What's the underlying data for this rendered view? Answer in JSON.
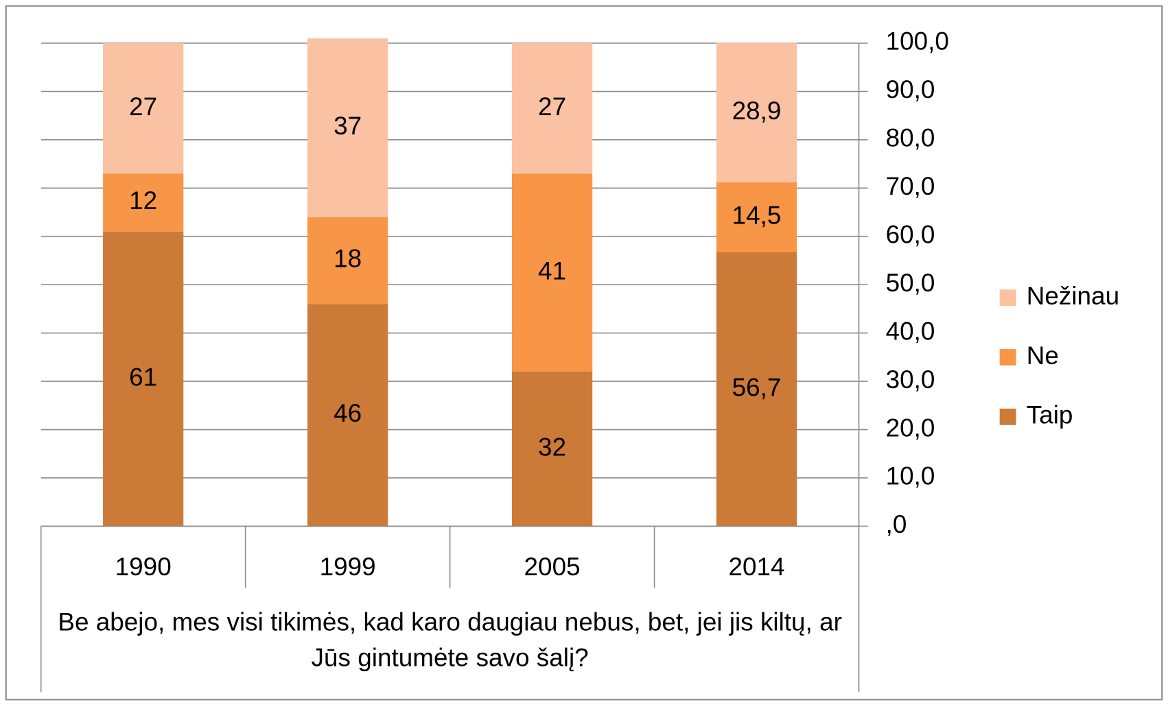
{
  "chart_data": {
    "type": "stacked_bar",
    "x_label": "Be abejo, mes visi tikimės, kad karo daugiau nebus, bet, jei jis kiltų, ar Jūs gintumėte savo šalį?",
    "categories": [
      "1990",
      "1999",
      "2005",
      "2014"
    ],
    "series": [
      {
        "name": "Taip",
        "color": "#cc7a38",
        "values": [
          61,
          46,
          32,
          56.7
        ],
        "value_labels": [
          "61",
          "46",
          "32",
          "56,7"
        ]
      },
      {
        "name": "Ne",
        "color": "#f79646",
        "values": [
          12,
          18,
          41,
          14.5
        ],
        "value_labels": [
          "12",
          "18",
          "41",
          "14,5"
        ]
      },
      {
        "name": "Nežinau",
        "color": "#fac1a3",
        "values": [
          27,
          37,
          27,
          28.9
        ],
        "value_labels": [
          "27",
          "37",
          "27",
          "28,9"
        ]
      }
    ],
    "ylim": [
      0,
      100
    ],
    "yticks": [
      {
        "value": 0,
        "label": ",0"
      },
      {
        "value": 10,
        "label": "10,0"
      },
      {
        "value": 20,
        "label": "20,0"
      },
      {
        "value": 30,
        "label": "30,0"
      },
      {
        "value": 40,
        "label": "40,0"
      },
      {
        "value": 50,
        "label": "50,0"
      },
      {
        "value": 60,
        "label": "60,0"
      },
      {
        "value": 70,
        "label": "70,0"
      },
      {
        "value": 80,
        "label": "80,0"
      },
      {
        "value": 90,
        "label": "90,0"
      },
      {
        "value": 100,
        "label": "100,0"
      }
    ],
    "grid": true,
    "legend": "right"
  }
}
